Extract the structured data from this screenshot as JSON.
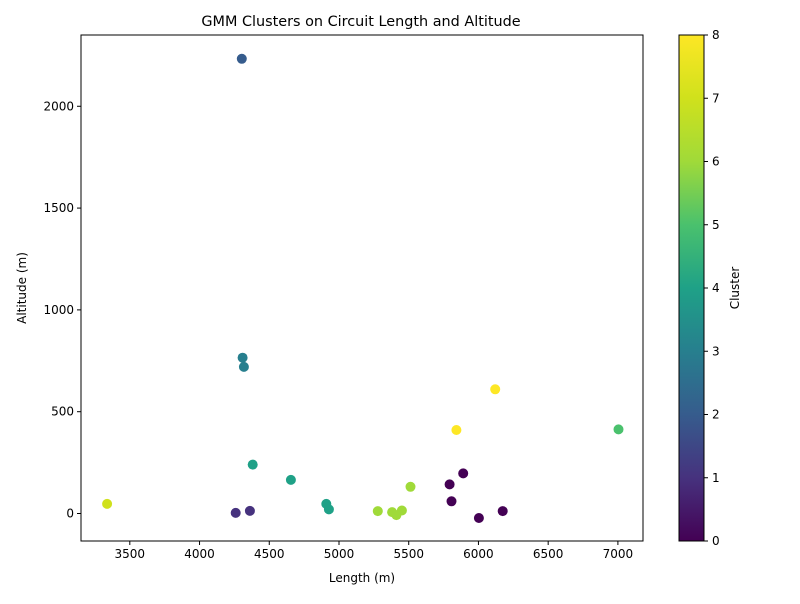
{
  "chart_data": {
    "type": "scatter",
    "title": "GMM Clusters on Circuit Length and Altitude",
    "xlabel": "Length (m)",
    "ylabel": "Altitude (m)",
    "xlim": [
      3150,
      7180
    ],
    "ylim": [
      -135,
      2350
    ],
    "xticks": [
      3500,
      4000,
      4500,
      5000,
      5500,
      6000,
      6500,
      7000
    ],
    "xtick_labels": [
      "3500",
      "4000",
      "4500",
      "5000",
      "5500",
      "6000",
      "6500",
      "7000"
    ],
    "yticks": [
      0,
      500,
      1000,
      1500,
      2000
    ],
    "ytick_labels": [
      "0",
      "500",
      "1000",
      "1500",
      "2000"
    ],
    "grid": false,
    "colormap": "viridis",
    "colorbar": {
      "label": "Cluster",
      "range": [
        0,
        8
      ],
      "ticks": [
        0,
        1,
        2,
        3,
        4,
        5,
        6,
        7,
        8
      ],
      "tick_labels": [
        "0",
        "1",
        "2",
        "3",
        "4",
        "5",
        "6",
        "7",
        "8"
      ]
    },
    "points": [
      {
        "x": 4303,
        "y": 2233,
        "cluster": 2
      },
      {
        "x": 4309,
        "y": 765,
        "cluster": 3
      },
      {
        "x": 4318,
        "y": 720,
        "cluster": 3
      },
      {
        "x": 6120,
        "y": 610,
        "cluster": 8
      },
      {
        "x": 5842,
        "y": 410,
        "cluster": 8
      },
      {
        "x": 7004,
        "y": 413,
        "cluster": 5
      },
      {
        "x": 4381,
        "y": 240,
        "cluster": 4
      },
      {
        "x": 4655,
        "y": 165,
        "cluster": 4
      },
      {
        "x": 5891,
        "y": 197,
        "cluster": 0
      },
      {
        "x": 5793,
        "y": 143,
        "cluster": 0
      },
      {
        "x": 5807,
        "y": 60,
        "cluster": 0
      },
      {
        "x": 5513,
        "y": 131,
        "cluster": 6
      },
      {
        "x": 3337,
        "y": 47,
        "cluster": 7
      },
      {
        "x": 4909,
        "y": 47,
        "cluster": 4
      },
      {
        "x": 4928,
        "y": 20,
        "cluster": 4
      },
      {
        "x": 5278,
        "y": 12,
        "cluster": 6
      },
      {
        "x": 5381,
        "y": 7,
        "cluster": 6
      },
      {
        "x": 5451,
        "y": 15,
        "cluster": 6
      },
      {
        "x": 5412,
        "y": -8,
        "cluster": 6
      },
      {
        "x": 4259,
        "y": 3,
        "cluster": 1
      },
      {
        "x": 4361,
        "y": 13,
        "cluster": 1
      },
      {
        "x": 6003,
        "y": -22,
        "cluster": 0
      },
      {
        "x": 6174,
        "y": 12,
        "cluster": 0
      }
    ]
  }
}
